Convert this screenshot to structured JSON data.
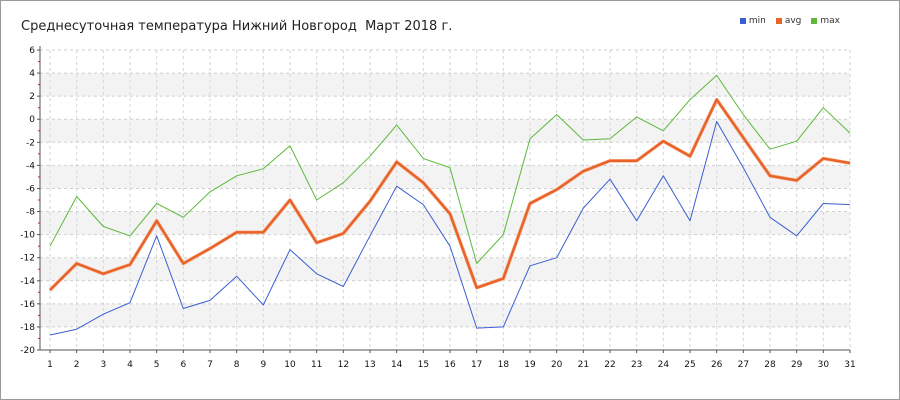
{
  "chart_data": {
    "type": "line",
    "title": "Среднесуточная температура Нижний Новгород  Март 2018 г.",
    "xlabel": "",
    "ylabel": "",
    "categories": [
      "1",
      "2",
      "3",
      "4",
      "5",
      "6",
      "7",
      "8",
      "9",
      "10",
      "11",
      "12",
      "13",
      "14",
      "15",
      "16",
      "17",
      "18",
      "19",
      "20",
      "21",
      "22",
      "23",
      "24",
      "25",
      "26",
      "27",
      "28",
      "29",
      "30",
      "31"
    ],
    "ylim": [
      -20,
      6
    ],
    "yticks": [
      "6",
      "4",
      "2",
      "0",
      "-2",
      "-4",
      "-6",
      "-8",
      "-10",
      "-12",
      "-14",
      "-16",
      "-18",
      "-20"
    ],
    "grid": true,
    "legend_position": "top-right",
    "series": [
      {
        "name": "min",
        "color": "#3a5fd0",
        "width": 1,
        "values": [
          -18.7,
          -18.2,
          -16.9,
          -15.9,
          -10.1,
          -16.4,
          -15.7,
          -13.6,
          -16.1,
          -11.3,
          -13.4,
          -14.5,
          -10.1,
          -5.8,
          -7.4,
          -11.0,
          -18.1,
          -18.0,
          -12.7,
          -12.0,
          -7.7,
          -5.2,
          -8.8,
          -4.9,
          -8.8,
          -0.2,
          -4.2,
          -8.5,
          -10.1,
          -7.3,
          -7.4
        ]
      },
      {
        "name": "avg",
        "color": "#e8632a",
        "width": 2.4,
        "values": [
          -14.8,
          -12.5,
          -13.4,
          -12.6,
          -8.8,
          -12.5,
          -11.2,
          -9.8,
          -9.8,
          -7.0,
          -10.7,
          -9.9,
          -7.1,
          -3.7,
          -5.5,
          -8.2,
          -14.6,
          -13.8,
          -7.3,
          -6.1,
          -4.5,
          -3.6,
          -3.6,
          -1.9,
          -3.2,
          1.7,
          -1.6,
          -4.9,
          -5.3,
          -3.4,
          -3.8
        ]
      },
      {
        "name": "max",
        "color": "#5cb83a",
        "width": 1,
        "values": [
          -11.0,
          -6.7,
          -9.3,
          -10.1,
          -7.3,
          -8.5,
          -6.3,
          -4.9,
          -4.3,
          -2.3,
          -7.0,
          -5.5,
          -3.2,
          -0.5,
          -3.4,
          -4.2,
          -12.5,
          -10.0,
          -1.7,
          0.4,
          -1.8,
          -1.7,
          0.2,
          -1.0,
          1.7,
          3.8,
          0.4,
          -2.6,
          -1.9,
          1.0,
          -1.2
        ]
      }
    ]
  }
}
